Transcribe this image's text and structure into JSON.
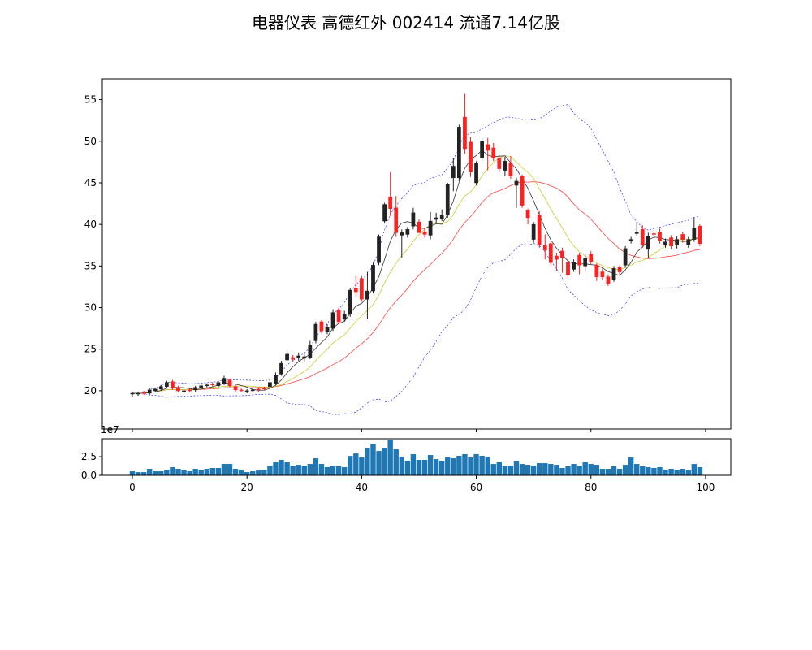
{
  "chart_data": {
    "type": "candlestick",
    "title": "电器仪表 高德红外 002414 流通7.14亿股",
    "x": "index 0-99",
    "xlim": [
      -5.24,
      104.4
    ],
    "price_ylim": [
      15.4,
      57.5
    ],
    "price_yticks": [
      20,
      25,
      30,
      35,
      40,
      45,
      50,
      55
    ],
    "volume_ylim": [
      0,
      4.9
    ],
    "volume_yticks": [
      "0.0",
      "2.5"
    ],
    "volume_offset_label": "1e7",
    "xticks": [
      0,
      20,
      40,
      60,
      80,
      100
    ],
    "colors": {
      "up": "#222222",
      "down": "#ff2020",
      "ma5": "#333333",
      "ma10": "#cccc33",
      "ma20": "#ff4444",
      "boll": "#3333ff",
      "volume": "#1f77b4"
    },
    "open": [
      19.6,
      19.6,
      19.8,
      19.7,
      20.0,
      20.2,
      20.5,
      21.1,
      20.4,
      19.9,
      20.1,
      20.1,
      20.4,
      20.6,
      20.8,
      20.6,
      20.9,
      21.3,
      20.5,
      20.1,
      19.9,
      20.0,
      20.2,
      20.3,
      20.5,
      20.9,
      22.0,
      23.7,
      24.0,
      24.0,
      23.9,
      24.0,
      26.0,
      28.3,
      27.1,
      27.5,
      29.7,
      28.6,
      29.2,
      32.3,
      33.5,
      31.0,
      32.0,
      35.4,
      40.4,
      43.3,
      42.0,
      38.7,
      38.8,
      39.8,
      40.3,
      39.1,
      38.7,
      40.6,
      40.7,
      41.1,
      45.6,
      45.6,
      52.9,
      49.9,
      45.0,
      48.0,
      49.6,
      49.2,
      48.0,
      46.5,
      47.4,
      44.7,
      45.8,
      41.7,
      38.2,
      41.1,
      37.5,
      37.7,
      36.2,
      36.8,
      35.4,
      34.6,
      36.3,
      35.0,
      36.4,
      35.1,
      34.3,
      33.7,
      33.4,
      34.9,
      35.1,
      38.0,
      38.9,
      39.4,
      37.0,
      38.9,
      39.1,
      37.5,
      38.4,
      37.5,
      38.8,
      37.6,
      38.2,
      39.8
    ],
    "close": [
      19.7,
      19.7,
      19.7,
      20.1,
      20.2,
      20.5,
      21.0,
      20.3,
      20.0,
      20.0,
      20.0,
      20.4,
      20.6,
      20.7,
      20.7,
      21.0,
      21.5,
      20.6,
      20.1,
      20.0,
      20.0,
      20.1,
      20.1,
      20.2,
      21.0,
      21.9,
      23.3,
      24.4,
      23.8,
      24.2,
      24.1,
      25.5,
      28.0,
      27.2,
      27.6,
      29.4,
      28.3,
      29.2,
      32.1,
      31.9,
      31.0,
      32.0,
      35.1,
      38.5,
      42.4,
      41.9,
      39.0,
      39.0,
      39.4,
      41.4,
      39.0,
      38.8,
      40.4,
      40.8,
      41.1,
      44.8,
      47.0,
      51.7,
      49.1,
      46.3,
      47.4,
      50.0,
      48.9,
      48.0,
      46.7,
      47.6,
      45.8,
      45.2,
      42.3,
      40.8,
      40.0,
      37.6,
      36.9,
      35.4,
      35.8,
      36.0,
      33.9,
      35.4,
      35.1,
      35.9,
      35.5,
      33.7,
      33.7,
      32.9,
      34.7,
      34.3,
      37.1,
      38.2,
      39.1,
      37.6,
      38.6,
      38.8,
      38.0,
      37.9,
      37.4,
      38.2,
      38.2,
      38.2,
      39.6,
      37.7
    ],
    "high": [
      19.9,
      19.9,
      20.0,
      20.3,
      20.4,
      20.7,
      21.2,
      21.3,
      20.6,
      20.2,
      20.3,
      20.6,
      20.9,
      20.9,
      21.0,
      21.2,
      21.8,
      21.5,
      20.7,
      20.3,
      20.2,
      20.3,
      20.4,
      20.5,
      21.3,
      22.2,
      23.6,
      24.8,
      24.3,
      24.6,
      24.6,
      26.0,
      28.3,
      28.5,
      28.0,
      29.8,
      30.0,
      29.6,
      32.4,
      33.8,
      33.8,
      34.3,
      35.4,
      38.8,
      42.6,
      46.3,
      43.4,
      39.4,
      39.7,
      42.0,
      40.6,
      39.6,
      41.5,
      41.4,
      41.8,
      45.0,
      48.0,
      52.0,
      55.7,
      50.5,
      47.6,
      50.4,
      50.4,
      49.8,
      48.3,
      48.1,
      48.2,
      45.6,
      46.0,
      41.9,
      40.3,
      41.6,
      38.8,
      37.9,
      36.6,
      37.2,
      35.7,
      35.8,
      36.6,
      36.5,
      36.8,
      35.3,
      34.7,
      34.0,
      35.0,
      35.1,
      37.4,
      38.5,
      40.3,
      39.9,
      39.0,
      39.2,
      39.5,
      38.3,
      38.7,
      38.6,
      39.1,
      38.5,
      40.8,
      40.0
    ],
    "low": [
      19.3,
      19.4,
      19.5,
      19.5,
      19.8,
      20.0,
      20.3,
      20.1,
      19.8,
      19.7,
      19.8,
      19.9,
      20.2,
      20.4,
      20.5,
      20.4,
      20.7,
      20.4,
      19.9,
      19.8,
      19.7,
      19.8,
      19.9,
      20.0,
      20.3,
      20.7,
      21.8,
      23.4,
      23.5,
      23.6,
      23.5,
      23.8,
      25.7,
      26.9,
      26.8,
      27.2,
      28.0,
      28.3,
      28.9,
      31.3,
      30.7,
      28.6,
      31.7,
      35.1,
      40.1,
      41.0,
      38.5,
      36.0,
      38.4,
      39.4,
      39.0,
      38.4,
      38.2,
      40.2,
      40.4,
      40.8,
      44.0,
      45.2,
      48.5,
      45.7,
      44.7,
      47.6,
      46.5,
      47.6,
      46.3,
      45.8,
      45.5,
      42.0,
      42.0,
      40.0,
      37.8,
      37.2,
      35.8,
      35.0,
      34.4,
      34.2,
      33.6,
      34.3,
      34.0,
      34.4,
      35.2,
      33.2,
      33.3,
      32.6,
      33.1,
      34.0,
      34.8,
      37.7,
      38.6,
      37.2,
      36.0,
      38.5,
      37.7,
      37.2,
      37.0,
      37.1,
      37.8,
      37.2,
      37.9,
      37.4
    ],
    "volume_1e7": [
      0.54,
      0.43,
      0.43,
      0.87,
      0.54,
      0.54,
      0.76,
      1.09,
      0.87,
      0.76,
      0.54,
      0.87,
      0.76,
      0.87,
      0.98,
      0.98,
      1.52,
      1.52,
      0.87,
      0.76,
      0.43,
      0.54,
      0.65,
      0.76,
      1.3,
      1.74,
      2.07,
      1.74,
      1.2,
      1.41,
      1.3,
      1.52,
      2.28,
      1.52,
      1.09,
      1.3,
      1.2,
      1.09,
      2.6,
      2.93,
      2.39,
      3.7,
      4.24,
      3.26,
      3.59,
      4.78,
      3.48,
      2.5,
      1.96,
      2.83,
      2.07,
      2.07,
      2.72,
      2.17,
      1.96,
      2.39,
      2.28,
      2.61,
      2.83,
      2.39,
      2.83,
      2.61,
      2.5,
      1.52,
      1.74,
      1.3,
      1.3,
      1.85,
      1.52,
      1.41,
      1.3,
      1.63,
      1.63,
      1.52,
      1.41,
      0.98,
      1.2,
      1.52,
      1.3,
      1.74,
      1.52,
      1.41,
      0.87,
      0.87,
      1.2,
      0.87,
      1.41,
      2.39,
      1.52,
      1.2,
      1.09,
      0.98,
      1.09,
      0.76,
      0.87,
      0.76,
      0.87,
      0.65,
      1.52,
      1.09
    ]
  }
}
